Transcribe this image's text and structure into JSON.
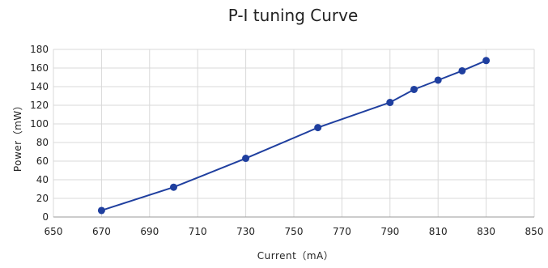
{
  "chart_data": {
    "type": "line",
    "title": "P-I tuning Curve",
    "xlabel": "Current（mA）",
    "ylabel": "Power（mW）",
    "xlim": [
      650,
      850
    ],
    "ylim": [
      0,
      180
    ],
    "xticks": [
      650,
      670,
      690,
      710,
      730,
      750,
      770,
      790,
      810,
      830,
      850
    ],
    "yticks": [
      0,
      20,
      40,
      60,
      80,
      100,
      120,
      140,
      160,
      180
    ],
    "grid": true,
    "legend": "none",
    "series": [
      {
        "color": "#1f3f9f",
        "points": [
          {
            "x": 670,
            "y": 7
          },
          {
            "x": 700,
            "y": 32
          },
          {
            "x": 730,
            "y": 63
          },
          {
            "x": 760,
            "y": 96
          },
          {
            "x": 790,
            "y": 123
          },
          {
            "x": 800,
            "y": 137
          },
          {
            "x": 810,
            "y": 147
          },
          {
            "x": 820,
            "y": 157
          },
          {
            "x": 830,
            "y": 168
          }
        ]
      }
    ]
  }
}
